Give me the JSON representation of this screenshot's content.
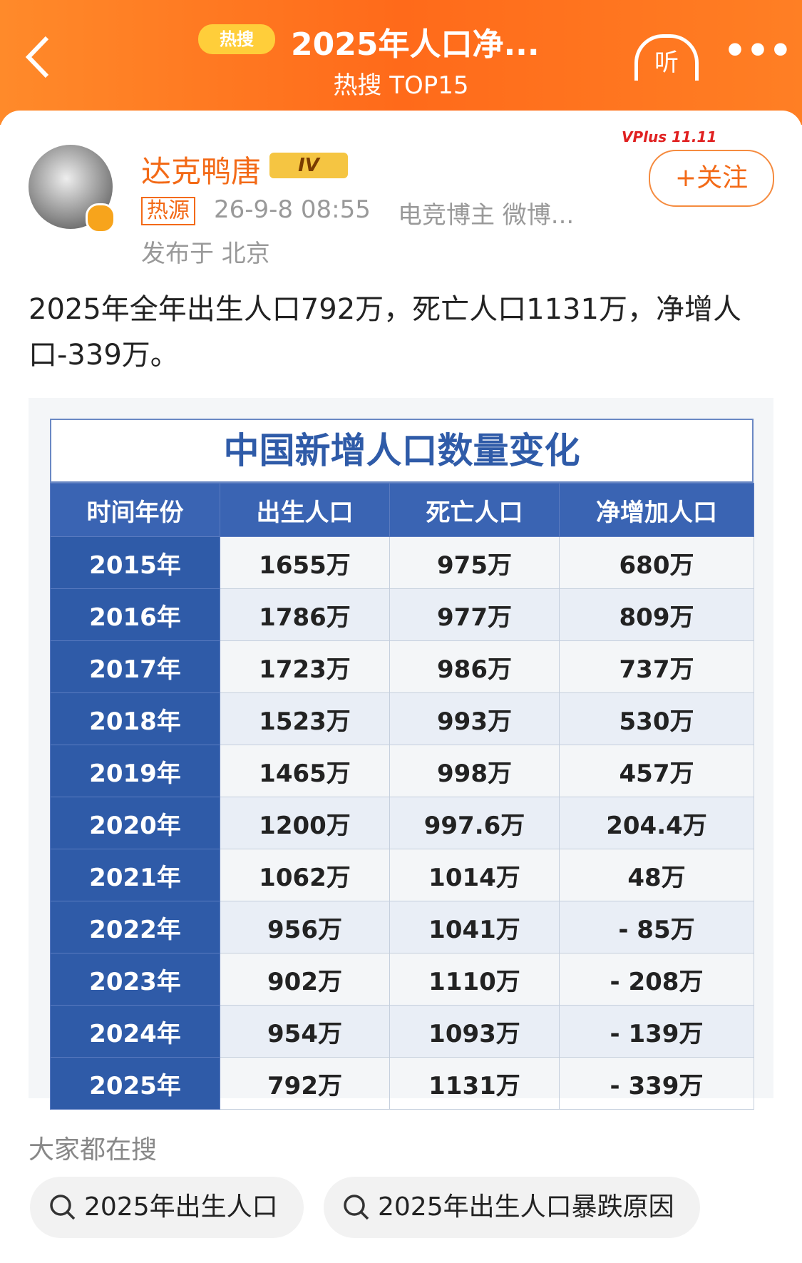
{
  "header": {
    "badge": "热搜",
    "title": "2025年人口净...",
    "subtitle": "热搜 TOP15",
    "listen": "听"
  },
  "post": {
    "author": "达克鸭唐",
    "level": "IV",
    "promo": "VPlus 11.11",
    "follow": "+关注",
    "tag": "热源",
    "time": "26-9-8 08:55",
    "meta": "电竞博主 微博...",
    "location": "发布于 北京",
    "text": "2025年全年出生人口792万，死亡人口1131万，净增人口-339万。"
  },
  "table": {
    "title": "中国新增人口数量变化",
    "headers": [
      "时间年份",
      "出生人口",
      "死亡人口",
      "净增加人口"
    ],
    "rows": [
      [
        "2015年",
        "1655万",
        "975万",
        "680万"
      ],
      [
        "2016年",
        "1786万",
        "977万",
        "809万"
      ],
      [
        "2017年",
        "1723万",
        "986万",
        "737万"
      ],
      [
        "2018年",
        "1523万",
        "993万",
        "530万"
      ],
      [
        "2019年",
        "1465万",
        "998万",
        "457万"
      ],
      [
        "2020年",
        "1200万",
        "997.6万",
        "204.4万"
      ],
      [
        "2021年",
        "1062万",
        "1014万",
        "48万"
      ],
      [
        "2022年",
        "956万",
        "1041万",
        "- 85万"
      ],
      [
        "2023年",
        "902万",
        "1110万",
        "- 208万"
      ],
      [
        "2024年",
        "954万",
        "1093万",
        "- 139万"
      ],
      [
        "2025年",
        "792万",
        "1131万",
        "- 339万"
      ]
    ]
  },
  "related": {
    "label": "大家都在搜",
    "items": [
      "2025年出生人口",
      "2025年出生人口暴跌原因"
    ]
  }
}
